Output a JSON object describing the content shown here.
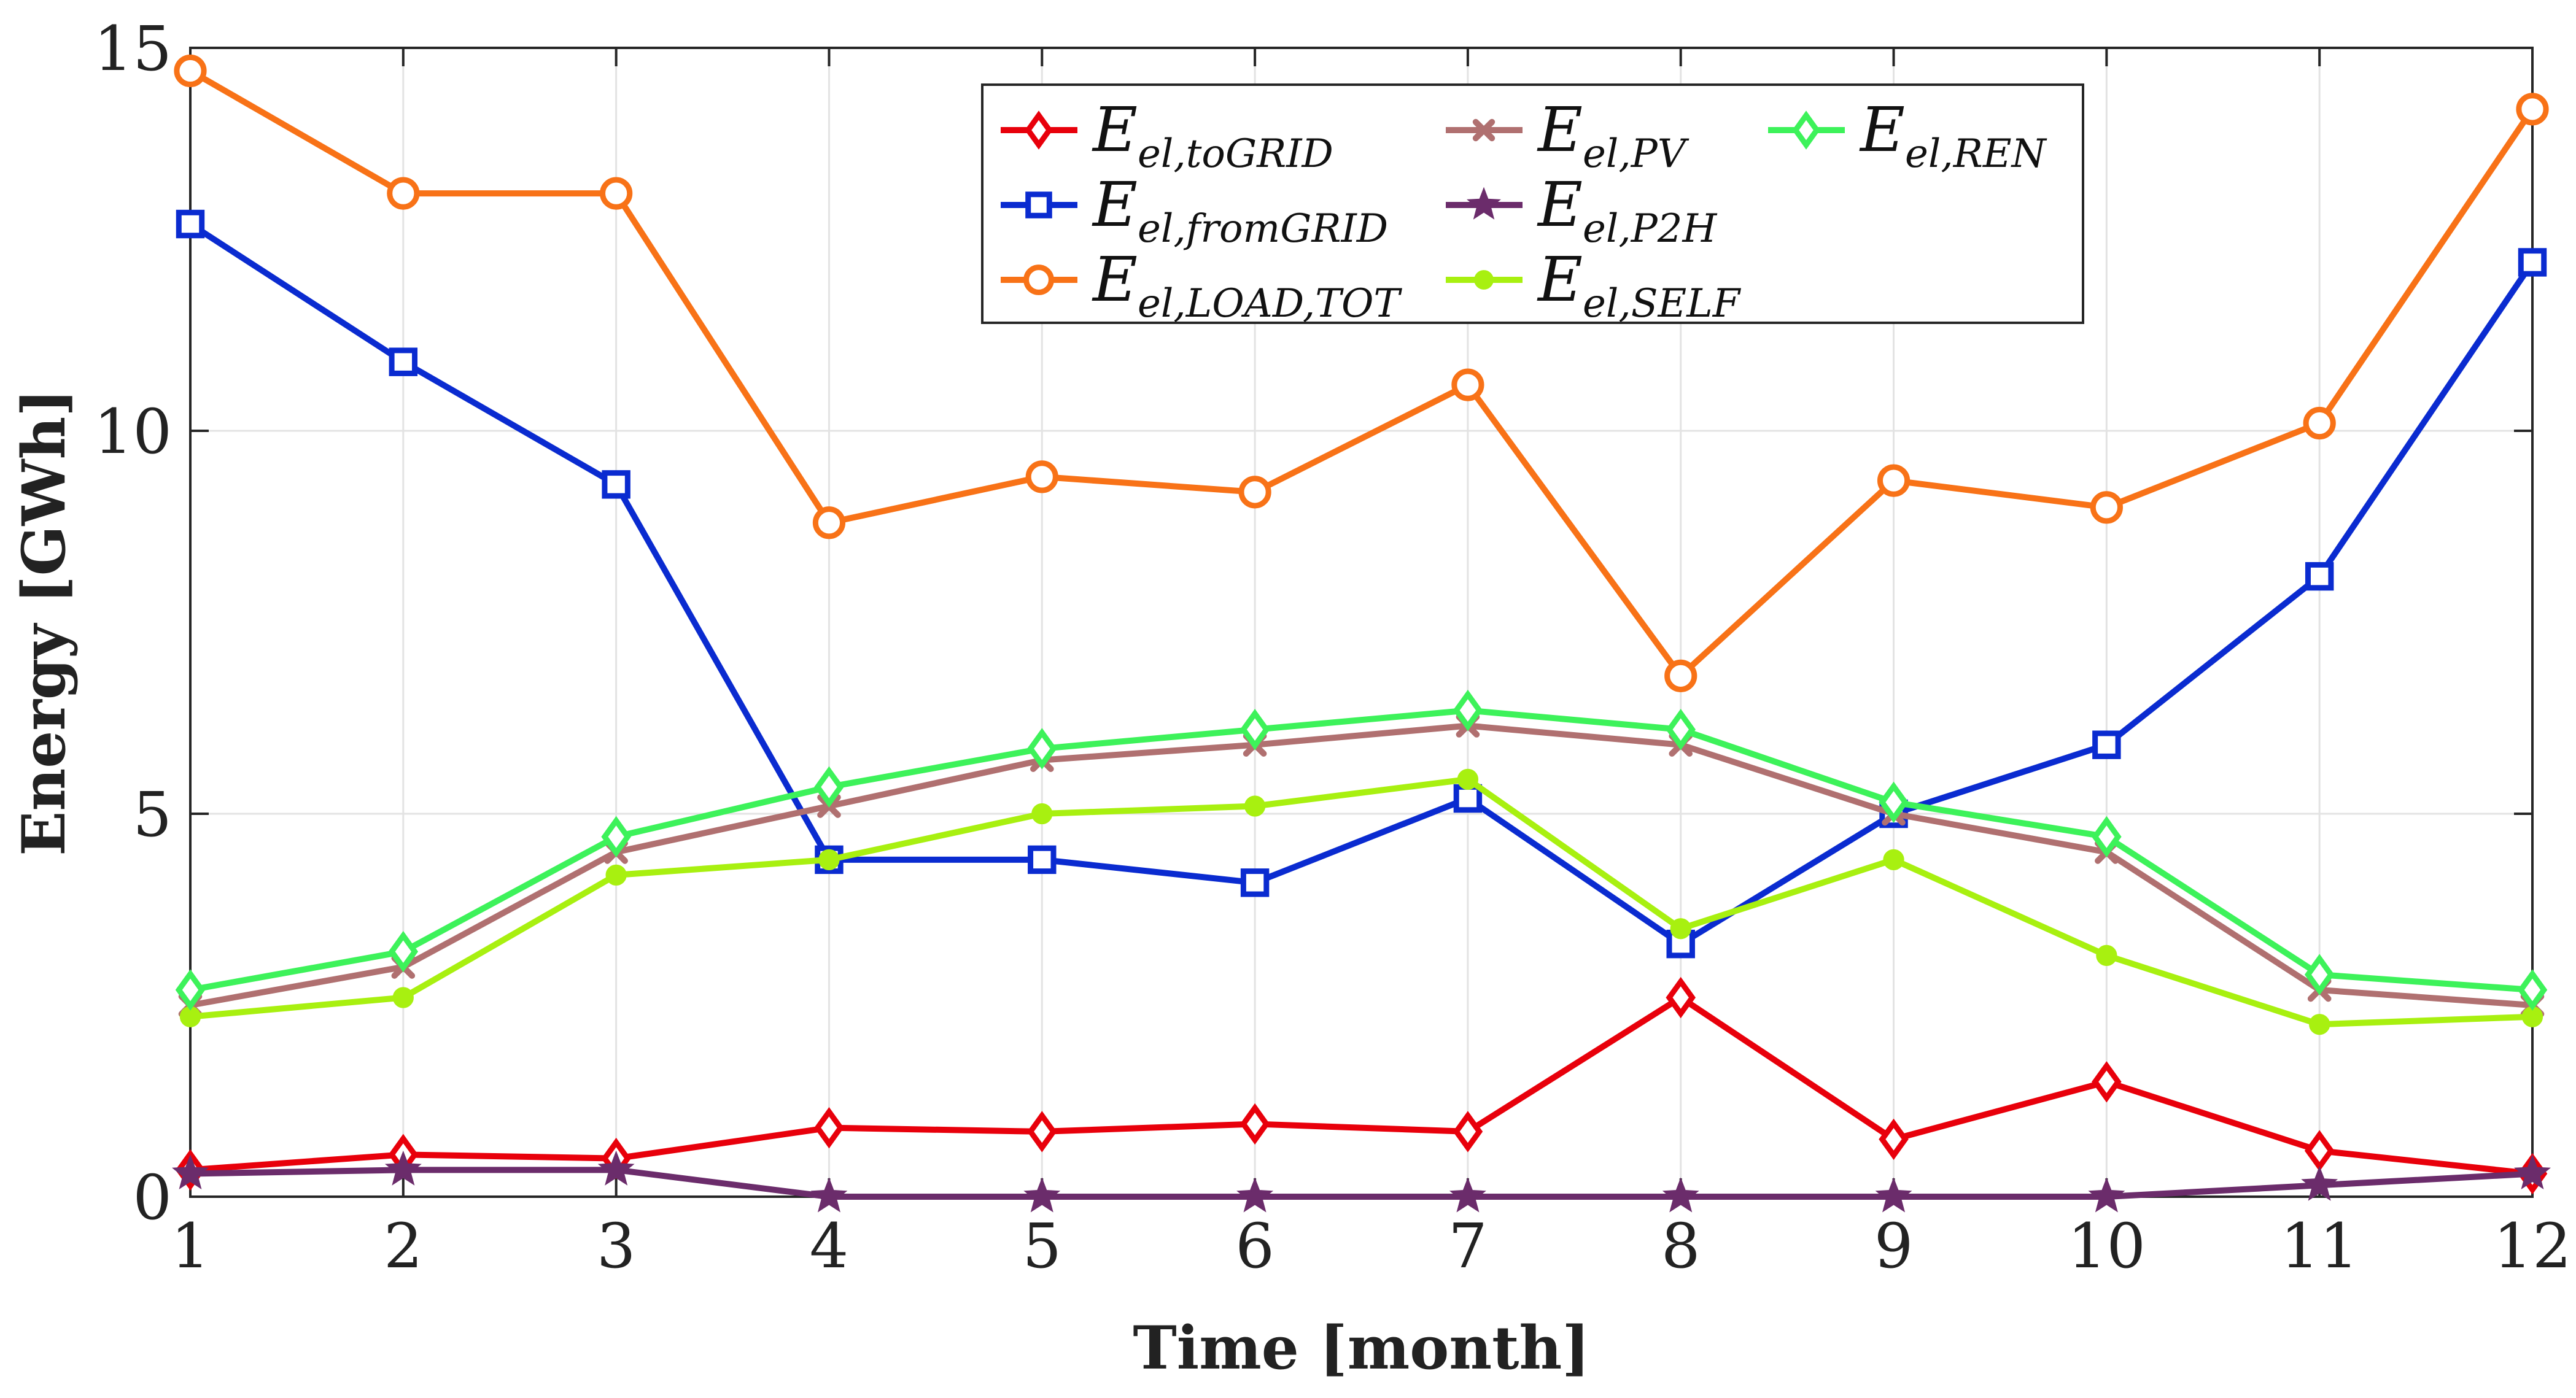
{
  "chart_data": {
    "type": "line",
    "title": "",
    "xlabel": "Time [month]",
    "ylabel": "Energy [GWh]",
    "x": [
      1,
      2,
      3,
      4,
      5,
      6,
      7,
      8,
      9,
      10,
      11,
      12
    ],
    "xlim": [
      1,
      12
    ],
    "ylim": [
      0,
      15
    ],
    "xticks": [
      "1",
      "2",
      "3",
      "4",
      "5",
      "6",
      "7",
      "8",
      "9",
      "10",
      "11",
      "12"
    ],
    "yticks": [
      "0",
      "5",
      "10",
      "15"
    ],
    "grid": true,
    "legend_position": "top-center",
    "series": [
      {
        "id": "togrid",
        "name": "E_el,toGRID",
        "base": "E",
        "sub": "el,toGRID",
        "color": "#e8000b",
        "marker": "diamond",
        "values": [
          0.35,
          0.55,
          0.5,
          0.9,
          0.85,
          0.95,
          0.85,
          2.6,
          0.75,
          1.5,
          0.6,
          0.3
        ]
      },
      {
        "id": "fromgrid",
        "name": "E_el,fromGRID",
        "base": "E",
        "sub": "el,fromGRID",
        "color": "#0a2bd0",
        "marker": "square",
        "values": [
          12.7,
          10.9,
          9.3,
          4.4,
          4.4,
          4.1,
          5.2,
          3.3,
          5.0,
          5.9,
          8.1,
          12.2
        ]
      },
      {
        "id": "loadtot",
        "name": "E_el,LOAD,TOT",
        "base": "E",
        "sub": "el,LOAD,TOT",
        "color": "#f87217",
        "marker": "circle",
        "values": [
          14.7,
          13.1,
          13.1,
          8.8,
          9.4,
          9.2,
          10.6,
          6.8,
          9.35,
          9.0,
          10.1,
          14.2
        ]
      },
      {
        "id": "pv",
        "name": "E_el,PV",
        "base": "E",
        "sub": "el,PV",
        "color": "#b07070",
        "marker": "x",
        "values": [
          2.5,
          3.0,
          4.5,
          5.1,
          5.7,
          5.9,
          6.15,
          5.9,
          5.0,
          4.5,
          2.7,
          2.5
        ]
      },
      {
        "id": "p2h",
        "name": "E_el,P2H",
        "base": "E",
        "sub": "el,P2H",
        "color": "#6b2c6b",
        "marker": "star",
        "values": [
          0.3,
          0.35,
          0.35,
          0.0,
          0.0,
          0.0,
          0.0,
          0.0,
          0.0,
          0.0,
          0.15,
          0.3
        ]
      },
      {
        "id": "self",
        "name": "E_el,SELF",
        "base": "E",
        "sub": "el,SELF",
        "color": "#a8f010",
        "marker": "dot",
        "values": [
          2.35,
          2.6,
          4.2,
          4.4,
          5.0,
          5.1,
          5.45,
          3.5,
          4.4,
          3.15,
          2.25,
          2.35
        ]
      },
      {
        "id": "ren",
        "name": "E_el,REN",
        "base": "E",
        "sub": "el,REN",
        "color": "#3df25a",
        "marker": "diamond",
        "values": [
          2.7,
          3.2,
          4.7,
          5.35,
          5.85,
          6.1,
          6.35,
          6.1,
          5.15,
          4.7,
          2.9,
          2.7
        ]
      }
    ],
    "legend_order": [
      "togrid",
      "pv",
      "ren",
      "fromgrid",
      "p2h",
      "loadtot",
      "self"
    ]
  }
}
